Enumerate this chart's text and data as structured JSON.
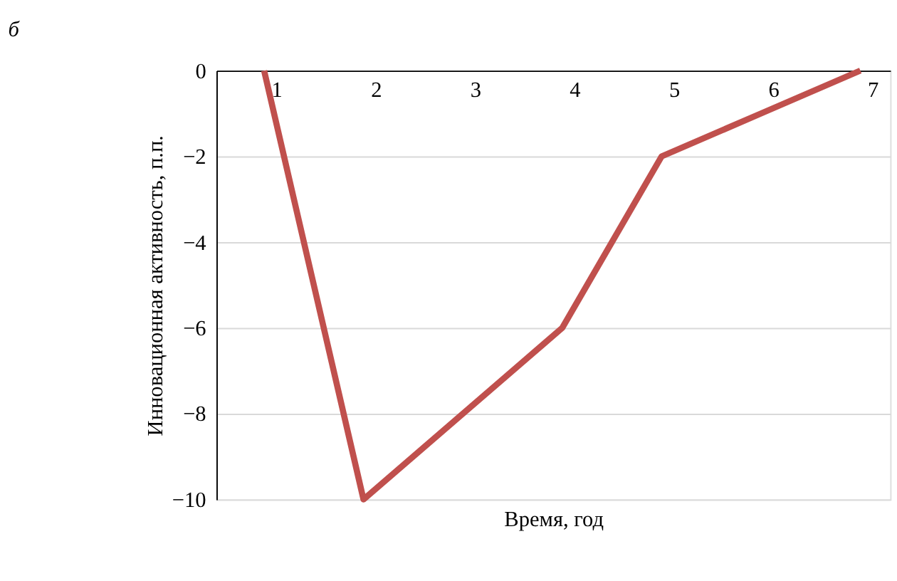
{
  "chart_data": {
    "type": "line",
    "title": "б",
    "xlabel": "Время, год",
    "ylabel": "Инновационная активность, п.п.",
    "categories": [
      "1",
      "2",
      "3",
      "4",
      "5",
      "6",
      "7"
    ],
    "series": [
      {
        "color": "#c0504d",
        "values": [
          0,
          -10,
          -8,
          -6,
          -2,
          -1,
          0
        ]
      }
    ],
    "ylim": [
      -10,
      0
    ],
    "yticks": [
      0,
      -2,
      -4,
      -6,
      -8,
      -10
    ],
    "grid": "y",
    "marker": "none",
    "line_style": "solid"
  }
}
